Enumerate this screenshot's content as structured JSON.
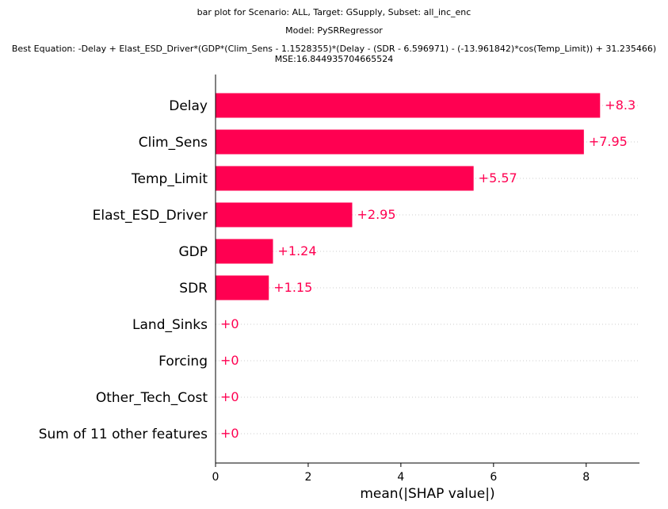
{
  "chart_data": {
    "type": "bar",
    "orientation": "horizontal",
    "title_lines": [
      "bar plot for Scenario: ALL, Target: GSupply, Subset: all_inc_enc",
      "Model: PySRRegressor",
      "Best Equation: -Delay + Elast_ESD_Driver*(GDP*(Clim_Sens - 1.1528355)*(Delay - (SDR - 6.596971) - (-13.961842)*cos(Temp_Limit)) + 31.235466)",
      "MSE:16.844935704665524"
    ],
    "categories": [
      "Delay",
      "Clim_Sens",
      "Temp_Limit",
      "Elast_ESD_Driver",
      "GDP",
      "SDR",
      "Land_Sinks",
      "Forcing",
      "Other_Tech_Cost",
      "Sum of 11 other features"
    ],
    "values": [
      8.3,
      7.95,
      5.57,
      2.95,
      1.24,
      1.15,
      0,
      0,
      0,
      0
    ],
    "value_labels": [
      "+8.3",
      "+7.95",
      "+5.57",
      "+2.95",
      "+1.24",
      "+1.15",
      "+0",
      "+0",
      "+0",
      "+0"
    ],
    "xlabel": "mean(|SHAP value|)",
    "ylabel": "",
    "xlim": [
      0,
      9.15
    ],
    "xticks": [
      0,
      2,
      4,
      6,
      8
    ],
    "xtick_labels": [
      "0",
      "2",
      "4",
      "6",
      "8"
    ],
    "grid": "dotted horizontal row guides",
    "bar_color": "#ff0051",
    "label_color": "#ff0051"
  }
}
